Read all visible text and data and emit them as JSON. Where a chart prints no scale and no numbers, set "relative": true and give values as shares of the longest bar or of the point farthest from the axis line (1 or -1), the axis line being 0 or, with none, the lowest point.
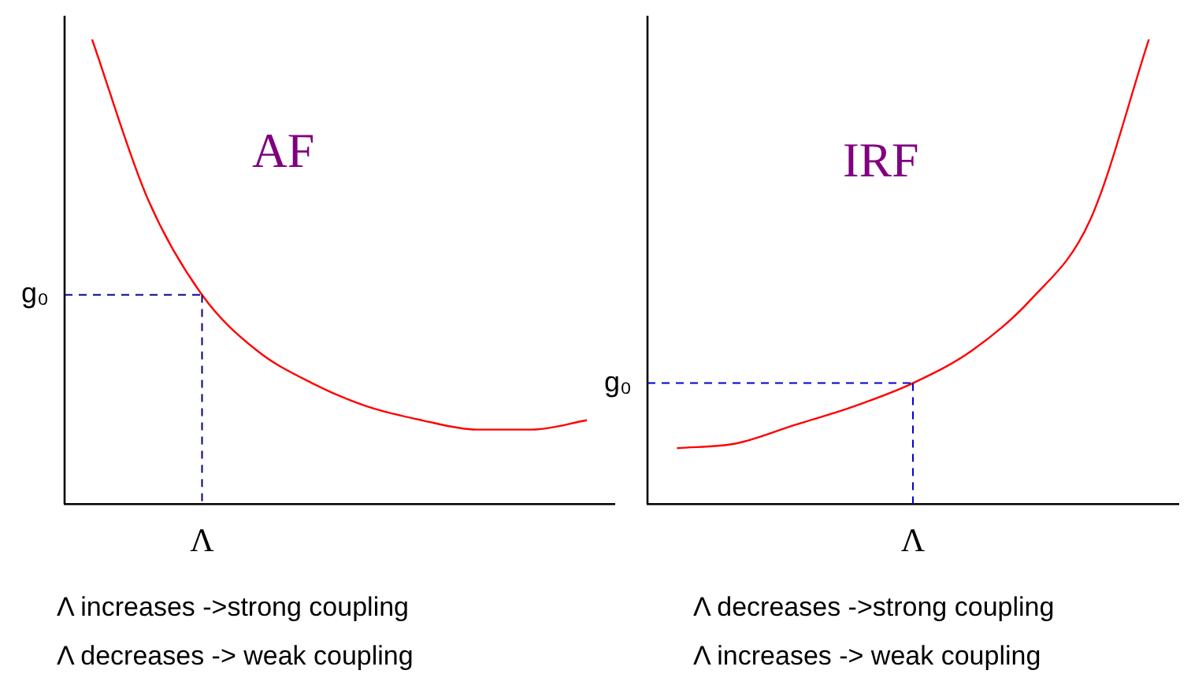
{
  "chart_data": [
    {
      "type": "line",
      "categories": [
        null,
        null,
        null,
        null,
        null,
        null,
        null,
        null,
        null,
        null
      ],
      "relative": true,
      "legend": false,
      "marker": "none",
      "grid": false,
      "series": [
        {
          "color": "#ff0000",
          "values": [
            1,
            0.66,
            0.45,
            0.33,
            0.26,
            0.21,
            0.18,
            0.16,
            0.16,
            0.18
          ]
        }
      ],
      "ref_lines": [
        {
          "axis": "y",
          "value": 0.45,
          "label": "g₀",
          "color": "#000080",
          "line_style": "dashed"
        }
      ],
      "annotations": [
        "AF",
        "Λ increases ->strong coupling",
        "Λ decreases -> weak coupling",
        {
          "text": "Λ",
          "y": 0.45
        }
      ]
    },
    {
      "type": "line",
      "categories": [
        null,
        null,
        null,
        null,
        null,
        null,
        null,
        null,
        null
      ],
      "relative": true,
      "legend": false,
      "marker": "none",
      "grid": false,
      "series": [
        {
          "color": "#ff0000",
          "values": [
            0.12,
            0.13,
            0.17,
            0.21,
            0.26,
            0.33,
            0.44,
            0.61,
            1
          ]
        }
      ],
      "ref_lines": [
        {
          "axis": "y",
          "value": 0.26,
          "label": "g₀",
          "color": "#0000cc",
          "line_style": "dashed"
        }
      ],
      "annotations": [
        "IRF",
        "Λ  decreases ->strong coupling",
        "Λ  increases -> weak coupling",
        {
          "text": "Λ",
          "y": 0.26
        }
      ]
    }
  ]
}
